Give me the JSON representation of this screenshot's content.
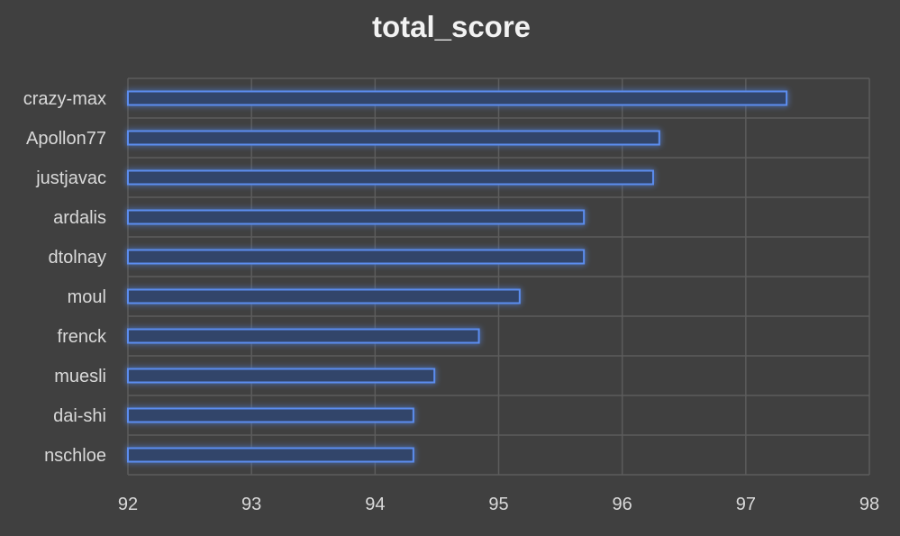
{
  "chart_data": {
    "type": "bar",
    "orientation": "horizontal",
    "title": "total_score",
    "xlabel": "",
    "ylabel": "",
    "categories": [
      "crazy-max",
      "Apollon77",
      "justjavac",
      "ardalis",
      "dtolnay",
      "moul",
      "frenck",
      "muesli",
      "dai-shi",
      "nschloe"
    ],
    "values": [
      97.33,
      96.3,
      96.25,
      95.69,
      95.69,
      95.17,
      94.84,
      94.48,
      94.31,
      94.31
    ],
    "xlim": [
      92,
      98
    ],
    "xticks": [
      "92",
      "93",
      "94",
      "95",
      "96",
      "97",
      "98"
    ],
    "grid": true,
    "legend": "none",
    "colors": {
      "background": "#404040",
      "bar_fill": "#33456b",
      "bar_edge": "#5b8def",
      "grid": "#5c5c5c",
      "text": "#d9d9d9"
    }
  }
}
